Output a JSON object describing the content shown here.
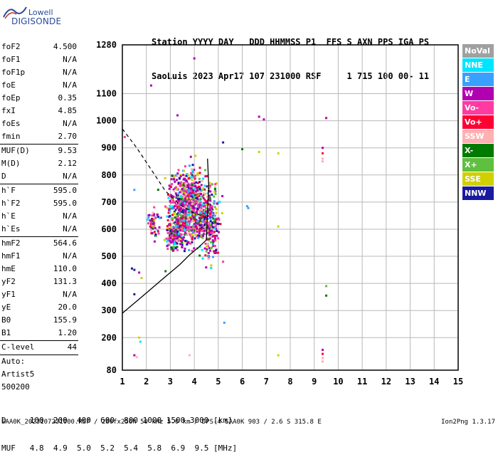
{
  "logo": {
    "line1": "Lowell",
    "line2": "DIGISONDE"
  },
  "header": {
    "line1": "Station YYYY DAY   DDD HHMMSS P1  FFS S AXN PPS IGA PS",
    "line2": "SaoLuis 2023 Apr17 107 231000 RSF     1 715 100 00- 11"
  },
  "params": {
    "group1": [
      {
        "k": "foF2",
        "v": "4.500"
      },
      {
        "k": "foF1",
        "v": "N/A"
      },
      {
        "k": "foF1p",
        "v": "N/A"
      },
      {
        "k": "foE",
        "v": "N/A"
      },
      {
        "k": "foEp",
        "v": "0.35"
      },
      {
        "k": "fxI",
        "v": "4.85"
      },
      {
        "k": "foEs",
        "v": "N/A"
      },
      {
        "k": "fmin",
        "v": "2.70"
      }
    ],
    "group2": [
      {
        "k": "MUF(D)",
        "v": "9.53"
      },
      {
        "k": "M(D)",
        "v": "2.12"
      },
      {
        "k": "D",
        "v": "N/A"
      }
    ],
    "group3": [
      {
        "k": "h`F",
        "v": "595.0"
      },
      {
        "k": "h`F2",
        "v": "595.0"
      },
      {
        "k": "h`E",
        "v": "N/A"
      },
      {
        "k": "h`Es",
        "v": "N/A"
      }
    ],
    "group4": [
      {
        "k": "hmF2",
        "v": "564.6"
      },
      {
        "k": "hmF1",
        "v": "N/A"
      },
      {
        "k": "hmE",
        "v": "110.0"
      },
      {
        "k": "yF2",
        "v": "131.3"
      },
      {
        "k": "yF1",
        "v": "N/A"
      },
      {
        "k": "yE",
        "v": "20.0"
      },
      {
        "k": "B0",
        "v": "155.9"
      },
      {
        "k": "B1",
        "v": "1.20"
      }
    ],
    "clevel": {
      "k": "C-level",
      "v": "44"
    },
    "auto": [
      "Auto:",
      "Artist5",
      "500200"
    ]
  },
  "legend": [
    {
      "label": "NoVal",
      "color": "#a0a0a0"
    },
    {
      "label": "NNE",
      "color": "#00e5ff"
    },
    {
      "label": "E",
      "color": "#3aa0ff"
    },
    {
      "label": "W",
      "color": "#b000b0"
    },
    {
      "label": "Vo-",
      "color": "#ff3aa0"
    },
    {
      "label": "Vo+",
      "color": "#ff0033"
    },
    {
      "label": "SSW",
      "color": "#ffb0b0"
    },
    {
      "label": "X-",
      "color": "#007a00"
    },
    {
      "label": "X+",
      "color": "#5fbf3f"
    },
    {
      "label": "SSE",
      "color": "#d0d000"
    },
    {
      "label": "NNW",
      "color": "#1a1aa0"
    }
  ],
  "bottom_table": {
    "row1": "D     100  200  400  600  800 1000 1500 3000 [km]",
    "row2": "MUF   4.8  4.9  5.0  5.2  5.4  5.8  6.9  9.5 [MHz]"
  },
  "footer": {
    "left": "SAA0K_2023107231000.RSF / 280fx256h 50 kHz 5.0 km / DPS-4 SAA0K 903 / 2.6 S 315.8 E",
    "right": "Ion2Png 1.3.17"
  },
  "chart_data": {
    "type": "scatter",
    "xlabel": "",
    "ylabel": "",
    "xlim": [
      1,
      15
    ],
    "ylim": [
      80,
      1280
    ],
    "x_ticks": [
      "1",
      "2",
      "3",
      "4",
      "5",
      "6",
      "7",
      "8",
      "9",
      "10",
      "11",
      "12",
      "13",
      "14",
      "15"
    ],
    "y_ticks": [
      {
        "v": 80,
        "label": "80"
      },
      {
        "v": 200,
        "label": "200"
      },
      {
        "v": 300,
        "label": "300"
      },
      {
        "v": 400,
        "label": "400"
      },
      {
        "v": 500,
        "label": "500"
      },
      {
        "v": 600,
        "label": "600"
      },
      {
        "v": 700,
        "label": "700"
      },
      {
        "v": 800,
        "label": "800"
      },
      {
        "v": 900,
        "label": "900"
      },
      {
        "v": 1000,
        "label": "1000"
      },
      {
        "v": 1100,
        "label": "1100"
      },
      {
        "v": 1280,
        "label": "1280"
      }
    ],
    "grid": true,
    "profile_solid": [
      [
        4.5,
        560
      ],
      [
        4.2,
        535
      ],
      [
        3.8,
        505
      ],
      [
        3.4,
        470
      ],
      [
        3.0,
        440
      ],
      [
        2.6,
        410
      ],
      [
        2.2,
        380
      ],
      [
        1.8,
        350
      ],
      [
        1.4,
        320
      ],
      [
        1.0,
        290
      ]
    ],
    "profile_upper": [
      [
        4.5,
        560
      ],
      [
        4.55,
        660
      ],
      [
        4.6,
        760
      ],
      [
        4.55,
        860
      ]
    ],
    "muf_dashed": [
      [
        1,
        970
      ],
      [
        1.6,
        900
      ],
      [
        2.2,
        820
      ],
      [
        2.8,
        740
      ],
      [
        3.4,
        690
      ],
      [
        4.0,
        660
      ],
      [
        4.6,
        640
      ]
    ],
    "echo_clusters": [
      {
        "cx": 3.8,
        "cy": 680,
        "sx": 0.75,
        "sy": 80,
        "n": 900
      },
      {
        "cx": 3.2,
        "cy": 580,
        "sx": 0.35,
        "sy": 35,
        "n": 160
      },
      {
        "cx": 4.7,
        "cy": 620,
        "sx": 0.35,
        "sy": 90,
        "n": 220
      },
      {
        "cx": 2.3,
        "cy": 620,
        "sx": 0.2,
        "sy": 35,
        "n": 60
      }
    ],
    "sparse_points": [
      {
        "x": 2.2,
        "y": 1130,
        "c": "W"
      },
      {
        "x": 3.3,
        "y": 1020,
        "c": "W"
      },
      {
        "x": 6.7,
        "y": 1015,
        "c": "W"
      },
      {
        "x": 6.9,
        "y": 1005,
        "c": "W"
      },
      {
        "x": 9.5,
        "y": 1010,
        "c": "W"
      },
      {
        "x": 4.0,
        "y": 1230,
        "c": "W"
      },
      {
        "x": 5.2,
        "y": 920,
        "c": "NNW"
      },
      {
        "x": 6.0,
        "y": 895,
        "c": "X-"
      },
      {
        "x": 6.7,
        "y": 885,
        "c": "SSE"
      },
      {
        "x": 7.5,
        "y": 880,
        "c": "SSE"
      },
      {
        "x": 9.35,
        "y": 900,
        "c": "W"
      },
      {
        "x": 9.35,
        "y": 880,
        "c": "Vo+"
      },
      {
        "x": 9.35,
        "y": 860,
        "c": "SSW"
      },
      {
        "x": 9.35,
        "y": 850,
        "c": "SSW"
      },
      {
        "x": 6.2,
        "y": 685,
        "c": "E"
      },
      {
        "x": 6.25,
        "y": 678,
        "c": "E"
      },
      {
        "x": 5.2,
        "y": 480,
        "c": "Vo-"
      },
      {
        "x": 7.5,
        "y": 610,
        "c": "SSE"
      },
      {
        "x": 9.5,
        "y": 390,
        "c": "X+"
      },
      {
        "x": 9.5,
        "y": 355,
        "c": "X-"
      },
      {
        "x": 5.25,
        "y": 255,
        "c": "E"
      },
      {
        "x": 1.7,
        "y": 200,
        "c": "SSE"
      },
      {
        "x": 1.75,
        "y": 185,
        "c": "NNE"
      },
      {
        "x": 1.5,
        "y": 135,
        "c": "W"
      },
      {
        "x": 1.6,
        "y": 128,
        "c": "SSW"
      },
      {
        "x": 3.8,
        "y": 135,
        "c": "SSW"
      },
      {
        "x": 7.5,
        "y": 135,
        "c": "SSE"
      },
      {
        "x": 9.35,
        "y": 155,
        "c": "W"
      },
      {
        "x": 9.35,
        "y": 140,
        "c": "Vo+"
      },
      {
        "x": 9.35,
        "y": 125,
        "c": "SSW"
      },
      {
        "x": 9.35,
        "y": 112,
        "c": "SSW"
      },
      {
        "x": 1.1,
        "y": 940,
        "c": "Vo-"
      },
      {
        "x": 1.5,
        "y": 745,
        "c": "E"
      },
      {
        "x": 1.4,
        "y": 455,
        "c": "NNW"
      },
      {
        "x": 1.5,
        "y": 450,
        "c": "NNW"
      },
      {
        "x": 1.7,
        "y": 440,
        "c": "W"
      },
      {
        "x": 1.5,
        "y": 360,
        "c": "NNW"
      },
      {
        "x": 2.8,
        "y": 445,
        "c": "X-"
      },
      {
        "x": 1.8,
        "y": 420,
        "c": "SSE"
      }
    ]
  }
}
